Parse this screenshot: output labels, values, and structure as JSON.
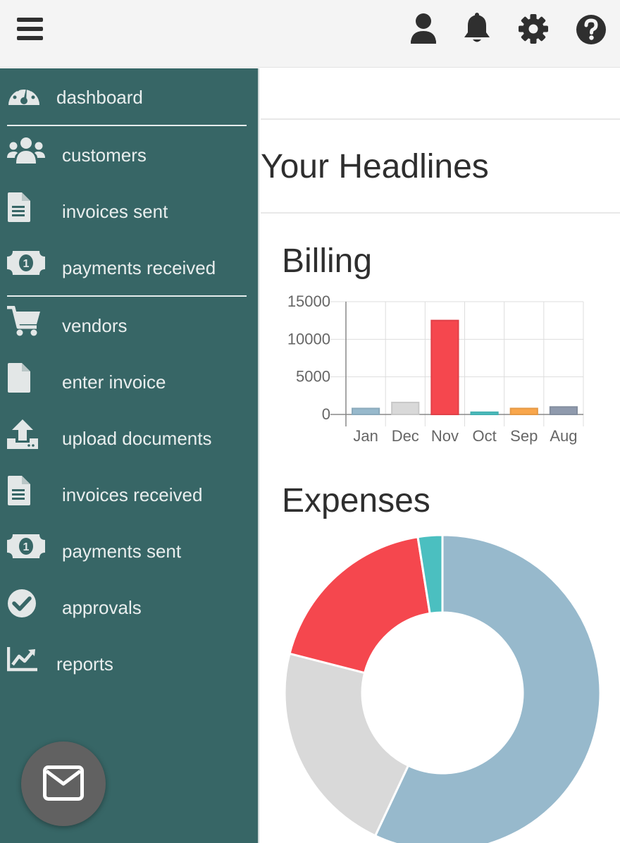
{
  "topbar": {
    "menu_icon": "hamburger-menu-icon",
    "actions": [
      {
        "name": "user-icon"
      },
      {
        "name": "bell-icon"
      },
      {
        "name": "gear-icon"
      },
      {
        "name": "help-icon"
      }
    ]
  },
  "sidebar": {
    "items": [
      {
        "label": "dashboard",
        "icon": "speedometer-icon"
      },
      {
        "label": "customers",
        "icon": "users-icon"
      },
      {
        "label": "invoices sent",
        "icon": "document-icon"
      },
      {
        "label": "payments received",
        "icon": "money-icon"
      },
      {
        "label": "vendors",
        "icon": "cart-icon"
      },
      {
        "label": "enter invoice",
        "icon": "file-icon"
      },
      {
        "label": "upload documents",
        "icon": "upload-icon"
      },
      {
        "label": "invoices received",
        "icon": "document-icon"
      },
      {
        "label": "payments sent",
        "icon": "money-icon"
      },
      {
        "label": "approvals",
        "icon": "check-circle-icon"
      },
      {
        "label": "reports",
        "icon": "chart-icon"
      }
    ],
    "fab_icon": "mail-icon"
  },
  "main": {
    "page_title": "Your Headlines",
    "billing_title": "Billing",
    "expenses_title": "Expenses"
  },
  "chart_data": [
    {
      "type": "bar",
      "title": "Billing",
      "categories": [
        "Jan",
        "Dec",
        "Nov",
        "Oct",
        "Sep",
        "Aug"
      ],
      "values": [
        800,
        1600,
        12500,
        300,
        800,
        1000
      ],
      "ylim": [
        0,
        15000
      ],
      "yticks": [
        0,
        5000,
        10000,
        15000
      ],
      "grid": true,
      "colors": [
        "#97b9cc",
        "#d9d9d9",
        "#f5474e",
        "#4bbfc0",
        "#f9a64b",
        "#8f9aad"
      ]
    },
    {
      "type": "pie",
      "title": "Expenses",
      "doughnut": true,
      "values": [
        57,
        22,
        18.5,
        2.5
      ],
      "colors": [
        "#97b9cc",
        "#d9d9d9",
        "#f5474e",
        "#4bbfc0"
      ]
    }
  ]
}
